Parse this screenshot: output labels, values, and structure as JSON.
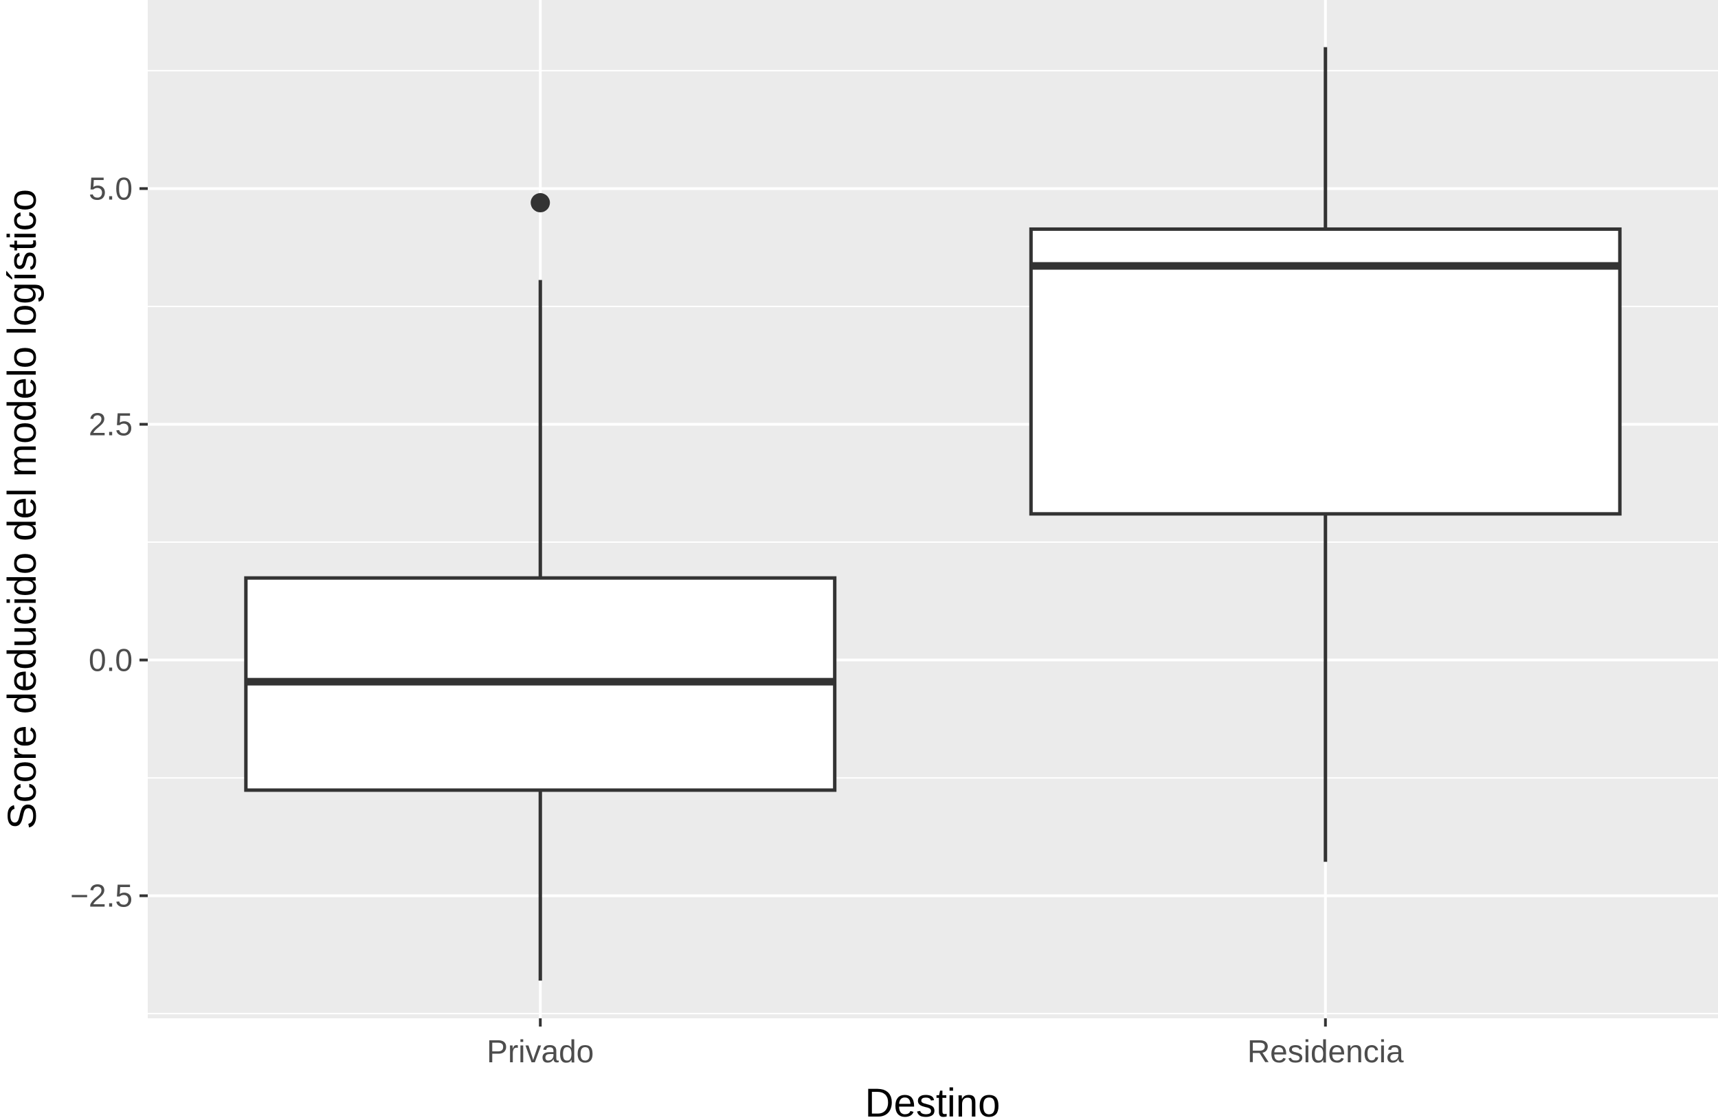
{
  "chart_data": {
    "type": "boxplot",
    "xlabel": "Destino",
    "ylabel": "Score deducido del modelo logístico",
    "categories": [
      "Privado",
      "Residencia"
    ],
    "ylim": [
      -3.8,
      7.0
    ],
    "yticks": [
      -2.5,
      0.0,
      2.5,
      5.0
    ],
    "ytick_labels": [
      "−2.5",
      "0.0",
      "2.5",
      "5.0"
    ],
    "grid": true,
    "boxes": [
      {
        "category": "Privado",
        "whisker_low": -3.4,
        "q1": -1.38,
        "median": -0.23,
        "q3": 0.87,
        "whisker_high": 4.03,
        "outliers": [
          4.85
        ]
      },
      {
        "category": "Residencia",
        "whisker_low": -2.14,
        "q1": 1.55,
        "median": 4.18,
        "q3": 4.57,
        "whisker_high": 6.5,
        "outliers": []
      }
    ],
    "colors": {
      "panel": "#ebebeb",
      "grid": "#ffffff",
      "box_fill": "#ffffff",
      "box_stroke": "#333333"
    }
  }
}
